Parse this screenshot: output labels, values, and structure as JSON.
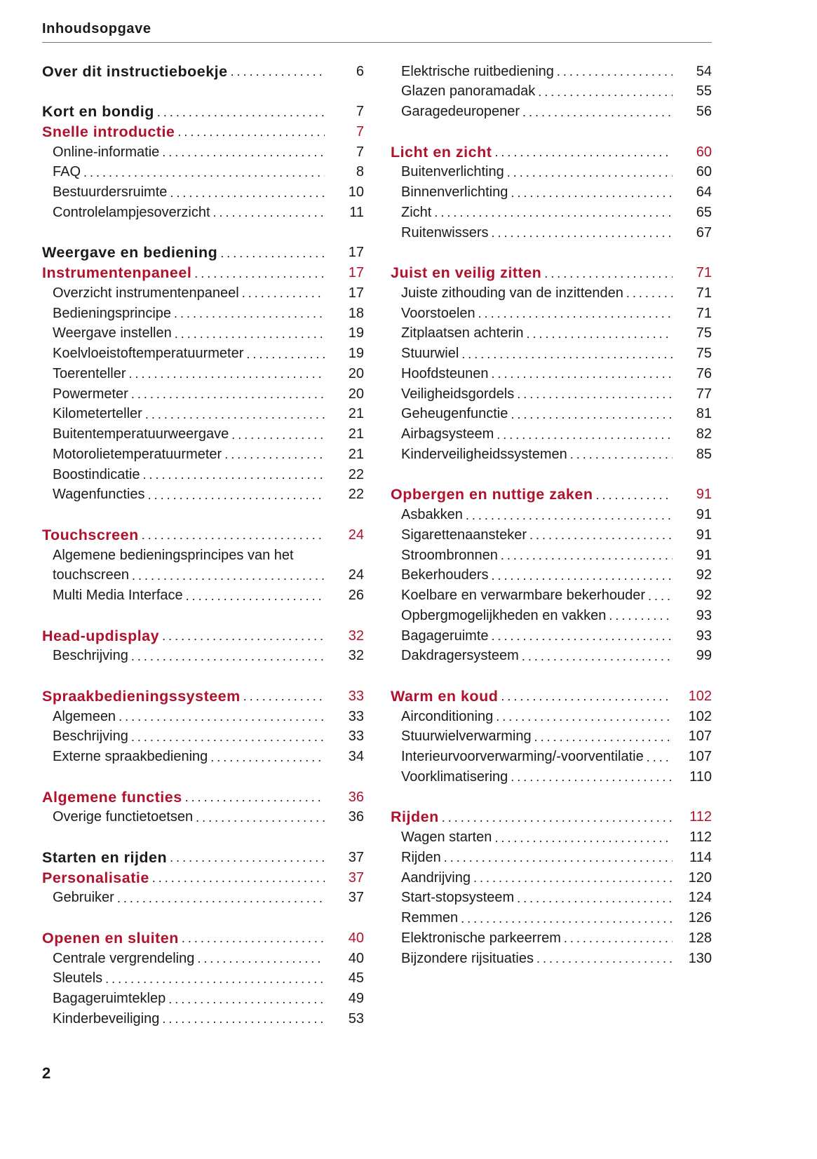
{
  "header": {
    "title": "Inhoudsopgave"
  },
  "colors": {
    "section": "#b0122c",
    "text": "#1a1a1a"
  },
  "columns": [
    {
      "groups": [
        [
          {
            "type": "chapter",
            "title": "Over dit instructieboekje",
            "page": "6"
          }
        ],
        [
          {
            "type": "chapter",
            "title": "Kort en bondig",
            "page": "7"
          },
          {
            "type": "section",
            "title": "Snelle introductie",
            "page": "7"
          },
          {
            "type": "item",
            "title": "Online-informatie",
            "page": "7"
          },
          {
            "type": "item",
            "title": "FAQ",
            "page": "8"
          },
          {
            "type": "item",
            "title": "Bestuurdersruimte",
            "page": "10"
          },
          {
            "type": "item",
            "title": "Controlelampjesoverzicht",
            "page": "11"
          }
        ],
        [
          {
            "type": "chapter",
            "title": "Weergave en bediening",
            "page": "17"
          },
          {
            "type": "section",
            "title": "Instrumentenpaneel",
            "page": "17"
          },
          {
            "type": "item",
            "title": "Overzicht instrumentenpaneel",
            "page": "17"
          },
          {
            "type": "item",
            "title": "Bedieningsprincipe",
            "page": "18"
          },
          {
            "type": "item",
            "title": "Weergave instellen",
            "page": "19"
          },
          {
            "type": "item",
            "title": "Koelvloeistoftemperatuurmeter",
            "page": "19"
          },
          {
            "type": "item",
            "title": "Toerenteller",
            "page": "20"
          },
          {
            "type": "item",
            "title": "Powermeter",
            "page": "20"
          },
          {
            "type": "item",
            "title": "Kilometerteller",
            "page": "21"
          },
          {
            "type": "item",
            "title": "Buitentemperatuurweergave",
            "page": "21"
          },
          {
            "type": "item",
            "title": "Motorolietemperatuurmeter",
            "page": "21"
          },
          {
            "type": "item",
            "title": "Boostindicatie",
            "page": "22"
          },
          {
            "type": "item",
            "title": "Wagenfuncties",
            "page": "22"
          }
        ],
        [
          {
            "type": "section",
            "title": "Touchscreen",
            "page": "24"
          },
          {
            "type": "item",
            "title": "Algemene bedieningsprincipes van het",
            "page": ""
          },
          {
            "type": "item",
            "title": "touchscreen",
            "page": "24"
          },
          {
            "type": "item",
            "title": "Multi Media Interface",
            "page": "26"
          }
        ],
        [
          {
            "type": "section",
            "title": "Head-updisplay",
            "page": "32"
          },
          {
            "type": "item",
            "title": "Beschrijving",
            "page": "32"
          }
        ],
        [
          {
            "type": "section",
            "title": "Spraakbedieningssysteem",
            "page": "33"
          },
          {
            "type": "item",
            "title": "Algemeen",
            "page": "33"
          },
          {
            "type": "item",
            "title": "Beschrijving",
            "page": "33"
          },
          {
            "type": "item",
            "title": "Externe spraakbediening",
            "page": "34"
          }
        ],
        [
          {
            "type": "section",
            "title": "Algemene functies",
            "page": "36"
          },
          {
            "type": "item",
            "title": "Overige functietoetsen",
            "page": "36"
          }
        ],
        [
          {
            "type": "chapter",
            "title": "Starten en rijden",
            "page": "37"
          },
          {
            "type": "section",
            "title": "Personalisatie",
            "page": "37"
          },
          {
            "type": "item",
            "title": "Gebruiker",
            "page": "37"
          }
        ],
        [
          {
            "type": "section",
            "title": "Openen en sluiten",
            "page": "40"
          },
          {
            "type": "item",
            "title": "Centrale vergrendeling",
            "page": "40"
          },
          {
            "type": "item",
            "title": "Sleutels",
            "page": "45"
          },
          {
            "type": "item",
            "title": "Bagageruimteklep",
            "page": "49"
          },
          {
            "type": "item",
            "title": "Kinderbeveiliging",
            "page": "53"
          }
        ]
      ]
    },
    {
      "groups": [
        [
          {
            "type": "item",
            "title": "Elektrische ruitbediening",
            "page": "54"
          },
          {
            "type": "item",
            "title": "Glazen panoramadak",
            "page": "55"
          },
          {
            "type": "item",
            "title": "Garagedeuropener",
            "page": "56"
          }
        ],
        [
          {
            "type": "section",
            "title": "Licht en zicht",
            "page": "60"
          },
          {
            "type": "item",
            "title": "Buitenverlichting",
            "page": "60"
          },
          {
            "type": "item",
            "title": "Binnenverlichting",
            "page": "64"
          },
          {
            "type": "item",
            "title": "Zicht",
            "page": "65"
          },
          {
            "type": "item",
            "title": "Ruitenwissers",
            "page": "67"
          }
        ],
        [
          {
            "type": "section",
            "title": "Juist en veilig zitten",
            "page": "71"
          },
          {
            "type": "item",
            "title": "Juiste zithouding van de inzittenden",
            "page": "71"
          },
          {
            "type": "item",
            "title": "Voorstoelen",
            "page": "71"
          },
          {
            "type": "item",
            "title": "Zitplaatsen achterin",
            "page": "75"
          },
          {
            "type": "item",
            "title": "Stuurwiel",
            "page": "75"
          },
          {
            "type": "item",
            "title": "Hoofdsteunen",
            "page": "76"
          },
          {
            "type": "item",
            "title": "Veiligheidsgordels",
            "page": "77"
          },
          {
            "type": "item",
            "title": "Geheugenfunctie",
            "page": "81"
          },
          {
            "type": "item",
            "title": "Airbagsysteem",
            "page": "82"
          },
          {
            "type": "item",
            "title": "Kinderveiligheidssystemen",
            "page": "85"
          }
        ],
        [
          {
            "type": "section",
            "title": "Opbergen en nuttige zaken",
            "page": "91"
          },
          {
            "type": "item",
            "title": "Asbakken",
            "page": "91"
          },
          {
            "type": "item",
            "title": "Sigarettenaansteker",
            "page": "91"
          },
          {
            "type": "item",
            "title": "Stroombronnen",
            "page": "91"
          },
          {
            "type": "item",
            "title": "Bekerhouders",
            "page": "92"
          },
          {
            "type": "item",
            "title": "Koelbare en verwarmbare bekerhouder",
            "page": "92"
          },
          {
            "type": "item",
            "title": "Opbergmogelijkheden en vakken",
            "page": "93"
          },
          {
            "type": "item",
            "title": "Bagageruimte",
            "page": "93"
          },
          {
            "type": "item",
            "title": "Dakdragersysteem",
            "page": "99"
          }
        ],
        [
          {
            "type": "section",
            "title": "Warm en koud",
            "page": "102"
          },
          {
            "type": "item",
            "title": "Airconditioning",
            "page": "102"
          },
          {
            "type": "item",
            "title": "Stuurwielverwarming",
            "page": "107"
          },
          {
            "type": "item",
            "title": "Interieurvoorverwarming/-voorventilatie",
            "page": "107"
          },
          {
            "type": "item",
            "title": "Voorklimatisering",
            "page": "110"
          }
        ],
        [
          {
            "type": "section",
            "title": "Rijden",
            "page": "112"
          },
          {
            "type": "item",
            "title": "Wagen starten",
            "page": "112"
          },
          {
            "type": "item",
            "title": "Rijden",
            "page": "114"
          },
          {
            "type": "item",
            "title": "Aandrijving",
            "page": "120"
          },
          {
            "type": "item",
            "title": "Start-stopsysteem",
            "page": "124"
          },
          {
            "type": "item",
            "title": "Remmen",
            "page": "126"
          },
          {
            "type": "item",
            "title": "Elektronische parkeerrem",
            "page": "128"
          },
          {
            "type": "item",
            "title": "Bijzondere rijsituaties",
            "page": "130"
          }
        ]
      ]
    }
  ],
  "footer": {
    "page_number": "2"
  }
}
